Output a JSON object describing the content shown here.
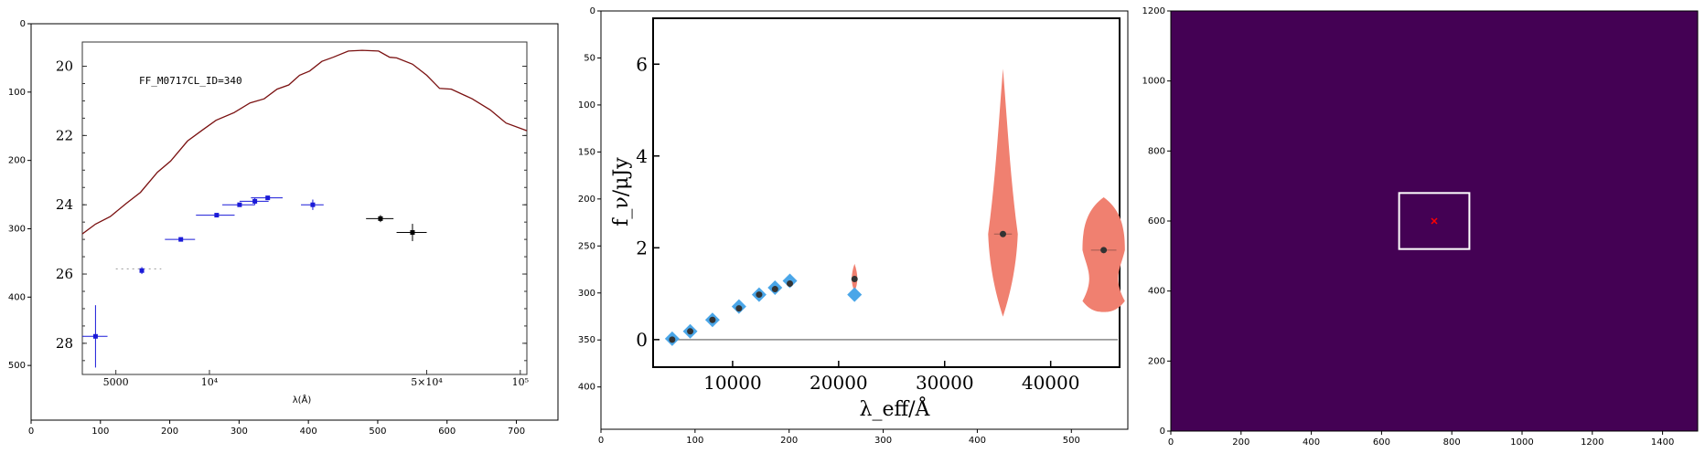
{
  "chart_data": [
    {
      "type": "image",
      "panel": "left",
      "outer_axes": {
        "xticks": [
          "0",
          "100",
          "200",
          "300",
          "400",
          "500",
          "600",
          "700"
        ],
        "yticks": [
          "0",
          "100",
          "200",
          "300",
          "400",
          "500"
        ],
        "xlim": [
          0,
          760
        ],
        "ylim": [
          580,
          0
        ]
      },
      "inner_plot": {
        "type": "scatter",
        "title": "FF_M0717CL_ID=340",
        "xlabel": "λ(Å)",
        "xticks": [
          "5000",
          "10⁴",
          "5×10⁴",
          "10⁵"
        ],
        "yticks": [
          "20",
          "22",
          "24",
          "26",
          "28"
        ],
        "x_scale": "log",
        "xlim": [
          3900,
          105000
        ],
        "ylim": [
          28.9,
          19.3
        ],
        "template_color": "#7a1010",
        "template_x": [
          3900,
          4300,
          4800,
          5400,
          6000,
          6800,
          7500,
          8500,
          9500,
          10500,
          12000,
          13500,
          15000,
          16500,
          18000,
          19500,
          21000,
          23000,
          25000,
          28000,
          31000,
          35000,
          38000,
          40000,
          45000,
          50000,
          55000,
          60000,
          70000,
          80000,
          90000,
          105000
        ],
        "template_y": [
          24.8,
          24.6,
          24.3,
          24.0,
          23.6,
          23.1,
          22.7,
          22.2,
          21.8,
          21.6,
          21.3,
          21.1,
          20.9,
          20.7,
          20.5,
          20.3,
          20.1,
          19.9,
          19.7,
          19.6,
          19.5,
          19.6,
          19.7,
          19.8,
          19.9,
          20.3,
          20.6,
          20.7,
          20.9,
          21.3,
          21.6,
          21.9
        ],
        "series": [
          {
            "name": "blue",
            "color": "#1a1ad8",
            "points": [
              {
                "x": 4300,
                "y": 27.8,
                "xerr": 400,
                "yerr": 0.9
              },
              {
                "x": 6060,
                "y": 25.9,
                "xerr": 30,
                "yerr": 0.1
              },
              {
                "x": 8090,
                "y": 25.0,
                "xerr": 900,
                "yerr": 0.05
              },
              {
                "x": 10550,
                "y": 24.3,
                "xerr": 1500,
                "yerr": 0.05
              },
              {
                "x": 12500,
                "y": 24.0,
                "xerr": 1500,
                "yerr": 0.05
              },
              {
                "x": 14000,
                "y": 23.9,
                "xerr": 1500,
                "yerr": 0.1
              },
              {
                "x": 15400,
                "y": 23.8,
                "xerr": 1800,
                "yerr": 0.05
              },
              {
                "x": 21500,
                "y": 24.0,
                "xerr": 1800,
                "yerr": 0.15
              }
            ]
          },
          {
            "name": "black",
            "color": "#000000",
            "points": [
              {
                "x": 35500,
                "y": 24.4,
                "xerr": 3600,
                "yerr": 0.1
              },
              {
                "x": 45000,
                "y": 24.8,
                "xerr": 5000,
                "yerr": 0.25
              }
            ]
          }
        ]
      }
    },
    {
      "type": "violin",
      "panel": "middle",
      "outer_axes": {
        "xticks": [
          "0",
          "100",
          "200",
          "300",
          "400",
          "500"
        ],
        "yticks": [
          "0",
          "50",
          "100",
          "150",
          "200",
          "250",
          "300",
          "350",
          "400"
        ],
        "xlim": [
          0,
          560
        ],
        "ylim": [
          445,
          0
        ]
      },
      "inner_plot": {
        "xlabel": "λ_eff/Å",
        "ylabel": "f_ν/μJy",
        "xticks": [
          "10000",
          "20000",
          "30000",
          "40000"
        ],
        "yticks": [
          "0",
          "2",
          "4",
          "6"
        ],
        "xlim": [
          2500,
          46500
        ],
        "ylim": [
          -0.6,
          7.0
        ],
        "baseline": 0,
        "model_color": "#4aa6e8",
        "observed_color": "#f08070",
        "model": [
          {
            "x": 4300,
            "y": 0.02
          },
          {
            "x": 6000,
            "y": 0.18
          },
          {
            "x": 8100,
            "y": 0.43
          },
          {
            "x": 10600,
            "y": 0.72
          },
          {
            "x": 12500,
            "y": 0.98
          },
          {
            "x": 14000,
            "y": 1.13
          },
          {
            "x": 15400,
            "y": 1.28
          },
          {
            "x": 21500,
            "y": 0.98
          }
        ],
        "observed": [
          {
            "x": 4300,
            "y": 0.0
          },
          {
            "x": 6000,
            "y": 0.18
          },
          {
            "x": 8100,
            "y": 0.43
          },
          {
            "x": 10600,
            "y": 0.68
          },
          {
            "x": 12500,
            "y": 0.98
          },
          {
            "x": 14000,
            "y": 1.1
          },
          {
            "x": 15400,
            "y": 1.22
          },
          {
            "x": 21500,
            "y": 1.32
          },
          {
            "x": 35500,
            "y": 2.3
          },
          {
            "x": 45000,
            "y": 1.95
          }
        ],
        "violins": [
          {
            "x": 21500,
            "center": 1.32,
            "low": 1.05,
            "high": 1.65,
            "halfwidth": 350
          },
          {
            "x": 35500,
            "center": 2.3,
            "low": 0.5,
            "high": 5.9,
            "halfwidth": 1400
          },
          {
            "x": 45000,
            "center": 1.95,
            "low": 0.6,
            "high": 3.1,
            "halfwidth": 2000
          }
        ]
      }
    },
    {
      "type": "heatmap",
      "panel": "right",
      "xticks": [
        "0",
        "200",
        "400",
        "600",
        "800",
        "1000",
        "1200",
        "1400"
      ],
      "yticks": [
        "0",
        "200",
        "400",
        "600",
        "800",
        "1000",
        "1200"
      ],
      "xlim": [
        0,
        1500
      ],
      "ylim": [
        0,
        1200
      ],
      "fill_color": "#440154",
      "box": {
        "x0": 650,
        "x1": 850,
        "y0": 520,
        "y1": 680
      },
      "marker": {
        "x": 750,
        "y": 600,
        "color": "#ff0000"
      }
    }
  ]
}
